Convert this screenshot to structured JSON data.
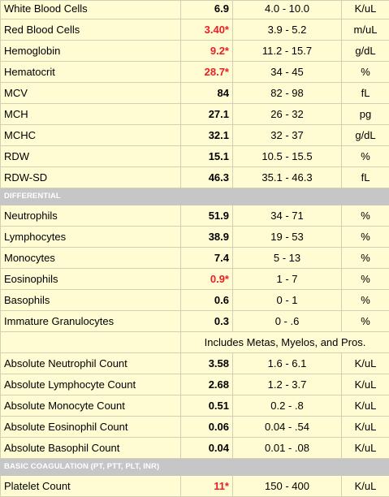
{
  "sections": [
    {
      "rows": [
        {
          "name": "White Blood Cells",
          "value": "6.9",
          "abnormal": false,
          "range": "4.0 - 10.0",
          "unit": "K/uL"
        },
        {
          "name": "Red Blood Cells",
          "value": "3.40*",
          "abnormal": true,
          "range": "3.9 - 5.2",
          "unit": "m/uL"
        },
        {
          "name": "Hemoglobin",
          "value": "9.2*",
          "abnormal": true,
          "range": "11.2 - 15.7",
          "unit": "g/dL"
        },
        {
          "name": "Hematocrit",
          "value": "28.7*",
          "abnormal": true,
          "range": "34 - 45",
          "unit": "%"
        },
        {
          "name": "MCV",
          "value": "84",
          "abnormal": false,
          "range": "82 - 98",
          "unit": "fL"
        },
        {
          "name": "MCH",
          "value": "27.1",
          "abnormal": false,
          "range": "26 - 32",
          "unit": "pg"
        },
        {
          "name": "MCHC",
          "value": "32.1",
          "abnormal": false,
          "range": "32 - 37",
          "unit": "g/dL"
        },
        {
          "name": "RDW",
          "value": "15.1",
          "abnormal": false,
          "range": "10.5 - 15.5",
          "unit": "%"
        },
        {
          "name": "RDW-SD",
          "value": "46.3",
          "abnormal": false,
          "range": "35.1 - 46.3",
          "unit": "fL"
        }
      ]
    },
    {
      "title": "DIFFERENTIAL",
      "rows": [
        {
          "name": "Neutrophils",
          "value": "51.9",
          "abnormal": false,
          "range": "34 - 71",
          "unit": "%"
        },
        {
          "name": "Lymphocytes",
          "value": "38.9",
          "abnormal": false,
          "range": "19 - 53",
          "unit": "%"
        },
        {
          "name": "Monocytes",
          "value": "7.4",
          "abnormal": false,
          "range": "5 - 13",
          "unit": "%"
        },
        {
          "name": "Eosinophils",
          "value": "0.9*",
          "abnormal": true,
          "range": "1 - 7",
          "unit": "%"
        },
        {
          "name": "Basophils",
          "value": "0.6",
          "abnormal": false,
          "range": "0 - 1",
          "unit": "%"
        },
        {
          "name": "Immature Granulocytes",
          "value": "0.3",
          "abnormal": false,
          "range": "0 - .6",
          "unit": "%"
        },
        {
          "note": "Includes Metas, Myelos, and Pros."
        },
        {
          "name": "Absolute Neutrophil Count",
          "value": "3.58",
          "abnormal": false,
          "range": "1.6 - 6.1",
          "unit": "K/uL"
        },
        {
          "name": "Absolute Lymphocyte Count",
          "value": "2.68",
          "abnormal": false,
          "range": "1.2 - 3.7",
          "unit": "K/uL"
        },
        {
          "name": "Absolute Monocyte Count",
          "value": "0.51",
          "abnormal": false,
          "range": "0.2 - .8",
          "unit": "K/uL"
        },
        {
          "name": "Absolute Eosinophil Count",
          "value": "0.06",
          "abnormal": false,
          "range": "0.04 - .54",
          "unit": "K/uL"
        },
        {
          "name": "Absolute Basophil Count",
          "value": "0.04",
          "abnormal": false,
          "range": "0.01 - .08",
          "unit": "K/uL"
        }
      ]
    },
    {
      "title": "BASIC COAGULATION (PT, PTT, PLT, INR)",
      "rows": [
        {
          "name": "Platelet Count",
          "value": "11*",
          "abnormal": true,
          "range": "150 - 400",
          "unit": "K/uL"
        }
      ]
    }
  ]
}
